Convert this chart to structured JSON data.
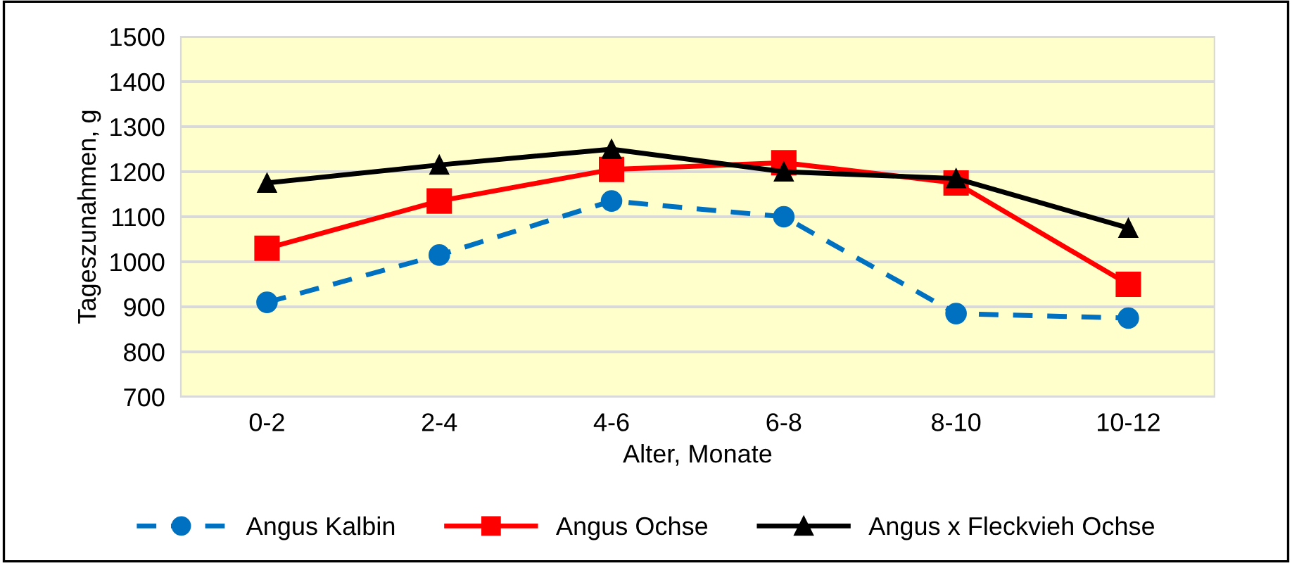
{
  "chart_data": {
    "type": "line",
    "xlabel": "Alter, Monate",
    "ylabel": "Tageszunahmen, g",
    "categories": [
      "0-2",
      "2-4",
      "4-6",
      "6-8",
      "8-10",
      "10-12"
    ],
    "series": [
      {
        "name": "Angus Kalbin",
        "color": "#0070c0",
        "marker": "circle",
        "line_style": "dashed",
        "values": [
          910,
          1015,
          1135,
          1100,
          885,
          875
        ]
      },
      {
        "name": "Angus Ochse",
        "color": "#ff0000",
        "marker": "square",
        "line_style": "solid",
        "values": [
          1030,
          1135,
          1205,
          1220,
          1175,
          950
        ]
      },
      {
        "name": "Angus x Fleckvieh Ochse",
        "color": "#000000",
        "marker": "triangle",
        "line_style": "solid",
        "values": [
          1175,
          1215,
          1250,
          1200,
          1185,
          1075
        ]
      }
    ],
    "ylim": [
      700,
      1500
    ],
    "yticks": [
      700,
      800,
      900,
      1000,
      1100,
      1200,
      1300,
      1400,
      1500
    ],
    "grid": "y",
    "legend": "bottom"
  }
}
